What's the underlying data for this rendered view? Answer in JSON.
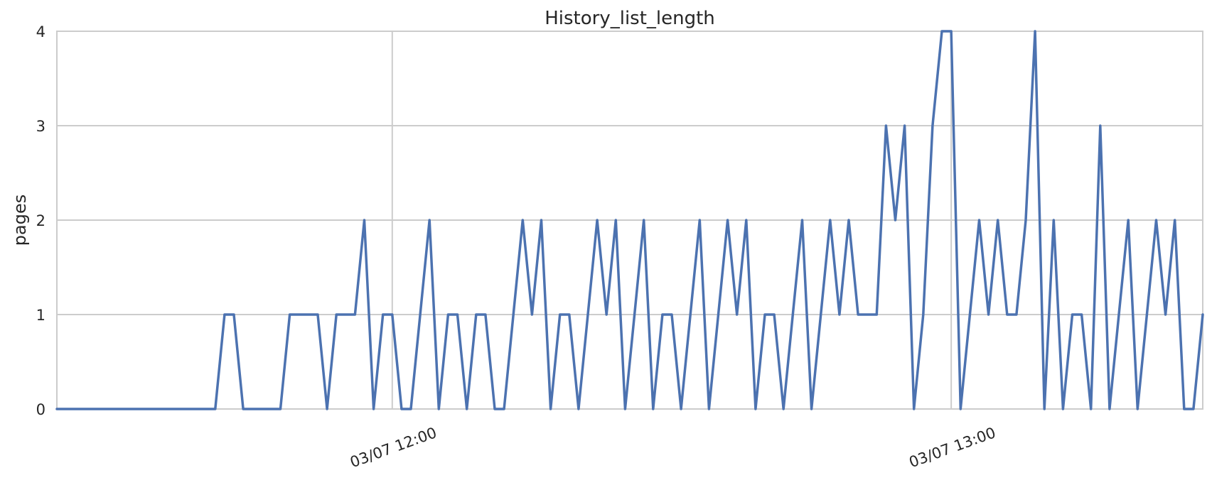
{
  "chart_data": {
    "type": "line",
    "title": "History_list_length",
    "xlabel": "",
    "ylabel": "pages",
    "ylim": [
      0,
      4
    ],
    "yticks": [
      "0",
      "1",
      "2",
      "3",
      "4"
    ],
    "x_range": [
      "03/07 11:24",
      "03/07 13:27"
    ],
    "xticks": [
      {
        "time": "03/07 12:00",
        "label": "03/07 12:00"
      },
      {
        "time": "03/07 13:00",
        "label": "03/07 13:00"
      }
    ],
    "grid": true,
    "line_color": "#4c72b0",
    "series": [
      {
        "x": [
          "11:24",
          "11:41",
          "11:42",
          "11:43",
          "11:44",
          "11:48",
          "11:49",
          "11:50",
          "11:51",
          "11:52",
          "11:53",
          "11:54",
          "11:55",
          "11:56",
          "11:57",
          "11:58",
          "11:59",
          "12:00",
          "12:01",
          "12:02",
          "12:03",
          "12:04",
          "12:05",
          "12:06",
          "12:07",
          "12:08",
          "12:09",
          "12:10",
          "12:11",
          "12:12",
          "12:13",
          "12:14",
          "12:15",
          "12:16",
          "12:17",
          "12:18",
          "12:19",
          "12:20",
          "12:21",
          "12:22",
          "12:23",
          "12:24",
          "12:25",
          "12:26",
          "12:27",
          "12:28",
          "12:29",
          "12:30",
          "12:31",
          "12:32",
          "12:33",
          "12:34",
          "12:35",
          "12:36",
          "12:37",
          "12:38",
          "12:39",
          "12:40",
          "12:41",
          "12:42",
          "12:43",
          "12:44",
          "12:45",
          "12:46",
          "12:47",
          "12:48",
          "12:49",
          "12:50",
          "12:51",
          "12:52",
          "12:53",
          "12:54",
          "12:55",
          "12:56",
          "12:57",
          "12:58",
          "12:59",
          "13:00",
          "13:01",
          "13:02",
          "13:03",
          "13:04",
          "13:05",
          "13:06",
          "13:07",
          "13:08",
          "13:09",
          "13:10",
          "13:11",
          "13:12",
          "13:13",
          "13:14",
          "13:15",
          "13:16",
          "13:17",
          "13:18",
          "13:19",
          "13:20",
          "13:21",
          "13:22",
          "13:23",
          "13:24",
          "13:25",
          "13:26",
          "13:27"
        ],
        "y": [
          0,
          0,
          1,
          1,
          0,
          0,
          1,
          1,
          1,
          1,
          0,
          1,
          1,
          1,
          2,
          0,
          1,
          1,
          0,
          0,
          1,
          2,
          0,
          1,
          1,
          0,
          1,
          1,
          0,
          0,
          1,
          2,
          1,
          2,
          0,
          1,
          1,
          0,
          1,
          2,
          1,
          2,
          0,
          1,
          2,
          0,
          1,
          1,
          0,
          1,
          2,
          0,
          1,
          2,
          1,
          2,
          0,
          1,
          1,
          0,
          1,
          2,
          0,
          1,
          2,
          1,
          2,
          1,
          1,
          1,
          3,
          2,
          3,
          0,
          1,
          3,
          4,
          4,
          0,
          1,
          2,
          1,
          2,
          1,
          1,
          2,
          4,
          0,
          2,
          0,
          1,
          1,
          0,
          3,
          0,
          1,
          2,
          0,
          1,
          2,
          1,
          2,
          0,
          0,
          1
        ]
      }
    ]
  }
}
